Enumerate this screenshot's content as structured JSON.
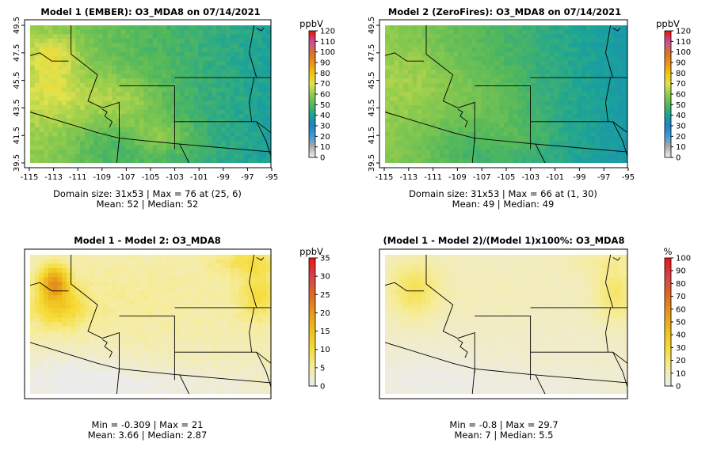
{
  "chart_data": [
    {
      "type": "heatmap",
      "title": "Model 1 (EMBER): O3_MDA8 on 07/14/2021",
      "x_ticks": [
        "-115",
        "-113",
        "-111",
        "-109",
        "-107",
        "-105",
        "-103",
        "-101",
        "-99",
        "-97",
        "-95"
      ],
      "y_ticks": [
        "39.5",
        "41.5",
        "43.5",
        "45.5",
        "47.5",
        "49.5"
      ],
      "colorbar_unit": "ppbV",
      "colorbar_ticks": [
        "0",
        "10",
        "20",
        "30",
        "40",
        "50",
        "60",
        "70",
        "80",
        "90",
        "100",
        "110",
        "120"
      ],
      "colorbar_range": [
        0,
        120
      ],
      "colorscale": [
        "#ececec",
        "#a9a9a9",
        "#3f9bd7",
        "#1f84bf",
        "#1aa29b",
        "#52b85c",
        "#8fcb4d",
        "#e3e24d",
        "#f2c70c",
        "#e7951a",
        "#d9722e",
        "#c7559d",
        "#ea1818"
      ],
      "summary": [
        "Domain size: 31x53 | Max = 76 at (25, 6)",
        "Mean: 52 |  Median: 52"
      ],
      "field": {
        "mean": 52,
        "max": 76
      }
    },
    {
      "type": "heatmap",
      "title": "Model 2 (ZeroFires): O3_MDA8 on 07/14/2021",
      "x_ticks": [
        "-115",
        "-113",
        "-111",
        "-109",
        "-107",
        "-105",
        "-103",
        "-101",
        "-99",
        "-97",
        "-95"
      ],
      "y_ticks": [
        "39.5",
        "41.5",
        "43.5",
        "45.5",
        "47.5",
        "49.5"
      ],
      "colorbar_unit": "ppbV",
      "colorbar_ticks": [
        "0",
        "10",
        "20",
        "30",
        "40",
        "50",
        "60",
        "70",
        "80",
        "90",
        "100",
        "110",
        "120"
      ],
      "colorbar_range": [
        0,
        120
      ],
      "colorscale": [
        "#ececec",
        "#a9a9a9",
        "#3f9bd7",
        "#1f84bf",
        "#1aa29b",
        "#52b85c",
        "#8fcb4d",
        "#e3e24d",
        "#f2c70c",
        "#e7951a",
        "#d9722e",
        "#c7559d",
        "#ea1818"
      ],
      "summary": [
        "Domain size: 31x53 | Max = 66 at (1, 30)",
        "Mean: 49 |  Median: 49"
      ],
      "field": {
        "mean": 49,
        "max": 66
      }
    },
    {
      "type": "heatmap",
      "title": "Model 1 - Model 2: O3_MDA8",
      "colorbar_unit": "ppbV",
      "colorbar_ticks": [
        "0",
        "5",
        "10",
        "15",
        "20",
        "25",
        "30",
        "35"
      ],
      "colorbar_range": [
        0,
        35
      ],
      "colorscale": [
        "#ececec",
        "#f6ec9c",
        "#f6dd3a",
        "#f0c11c",
        "#e89a1c",
        "#dc6b24",
        "#d6444d",
        "#ea1818"
      ],
      "summary": [
        "Min = -0.309 | Max = 21",
        "Mean: 3.66 |  Median: 2.87"
      ],
      "field": {
        "min": -0.309,
        "max": 21,
        "mean": 3.66,
        "median": 2.87
      }
    },
    {
      "type": "heatmap",
      "title": "(Model 1 - Model 2)/(Model 1)x100%: O3_MDA8",
      "colorbar_unit": "%",
      "colorbar_ticks": [
        "0",
        "10",
        "20",
        "30",
        "40",
        "50",
        "60",
        "70",
        "80",
        "90",
        "100"
      ],
      "colorbar_range": [
        0,
        100
      ],
      "colorscale": [
        "#ececec",
        "#f6ec9c",
        "#f6dd3a",
        "#f0c11c",
        "#e89a1c",
        "#dc6b24",
        "#d6444d",
        "#ea1818"
      ],
      "summary": [
        "Min = -0.8 | Max = 29.7",
        "Mean: 7 |  Median: 5.5"
      ],
      "field": {
        "min": -0.8,
        "max": 29.7,
        "mean": 7,
        "median": 5.5
      }
    }
  ]
}
